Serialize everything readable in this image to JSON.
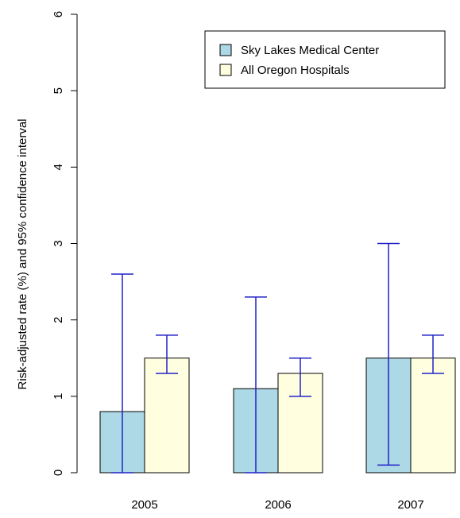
{
  "chart_data": {
    "type": "bar",
    "ylabel": "Risk-adjusted rate (%) and 95% confidence interval",
    "xlabel": "",
    "ylim": [
      0,
      6
    ],
    "yticks": [
      "0",
      "1",
      "2",
      "3",
      "4",
      "5",
      "6"
    ],
    "categories": [
      "2005",
      "2006",
      "2007"
    ],
    "legend_position": "top-right",
    "series": [
      {
        "name": "Sky Lakes Medical Center",
        "color": "#add8e6",
        "values": [
          0.8,
          1.1,
          1.5
        ],
        "ci_low": [
          0.0,
          0.0,
          0.1
        ],
        "ci_high": [
          2.6,
          2.3,
          3.0
        ]
      },
      {
        "name": "All Oregon Hospitals",
        "color": "#ffffe0",
        "values": [
          1.5,
          1.3,
          1.5
        ],
        "ci_low": [
          1.3,
          1.0,
          1.3
        ],
        "ci_high": [
          1.8,
          1.5,
          1.8
        ]
      }
    ],
    "errorbar_color": "#2020c8",
    "grid": false
  }
}
